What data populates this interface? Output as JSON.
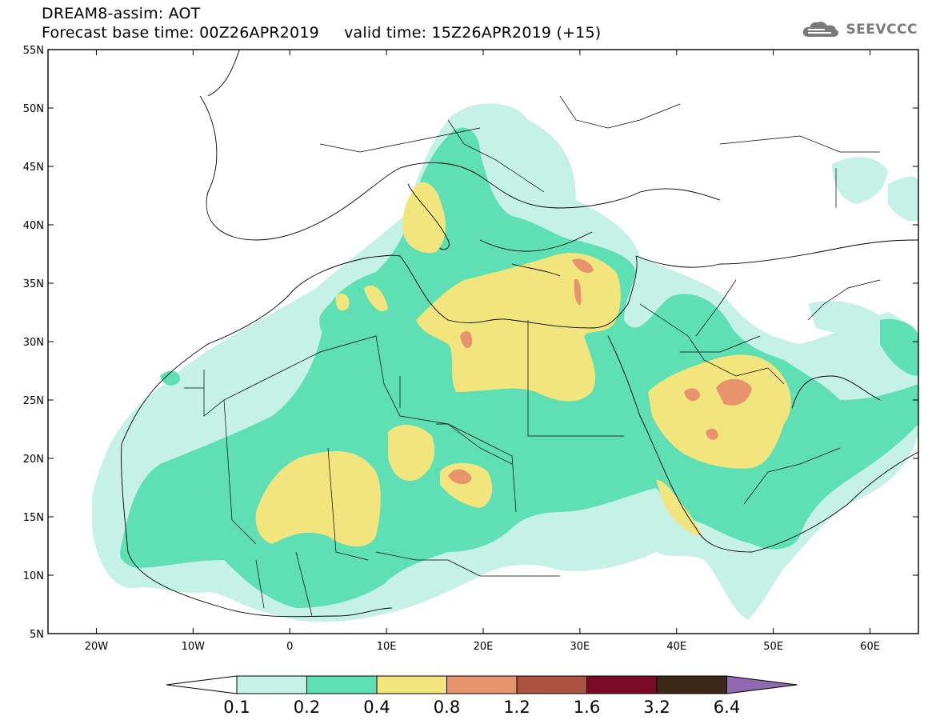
{
  "header": {
    "line1": "DREAM8-assim: AOT",
    "line2": "Forecast base time: 00Z26APR2019     valid time: 15Z26APR2019 (+15)",
    "logo_text": "SEEVCCC"
  },
  "map": {
    "lon_range": [
      -25,
      65
    ],
    "lat_range": [
      5,
      55
    ],
    "lat_ticks": [
      {
        "value": 55,
        "label": "55N"
      },
      {
        "value": 50,
        "label": "50N"
      },
      {
        "value": 45,
        "label": "45N"
      },
      {
        "value": 40,
        "label": "40N"
      },
      {
        "value": 35,
        "label": "35N"
      },
      {
        "value": 30,
        "label": "30N"
      },
      {
        "value": 25,
        "label": "25N"
      },
      {
        "value": 20,
        "label": "20N"
      },
      {
        "value": 15,
        "label": "15N"
      },
      {
        "value": 10,
        "label": "10N"
      },
      {
        "value": 5,
        "label": "5N"
      }
    ],
    "lon_ticks": [
      {
        "value": -20,
        "label": "20W"
      },
      {
        "value": -10,
        "label": "10W"
      },
      {
        "value": 0,
        "label": "0"
      },
      {
        "value": 10,
        "label": "10E"
      },
      {
        "value": 20,
        "label": "20E"
      },
      {
        "value": 30,
        "label": "30E"
      },
      {
        "value": 40,
        "label": "40E"
      },
      {
        "value": 50,
        "label": "50E"
      },
      {
        "value": 60,
        "label": "60E"
      }
    ]
  },
  "colorbar": {
    "labels": [
      "0.1",
      "0.2",
      "0.4",
      "0.8",
      "1.2",
      "1.6",
      "3.2",
      "6.4"
    ],
    "colors": [
      "#c6f1e6",
      "#5fe0b4",
      "#f2e57e",
      "#e7946d",
      "#ad5140",
      "#7b0a26",
      "#3d2817"
    ],
    "under_color": "#ffffff",
    "over_color": "#8f6ab0"
  }
}
